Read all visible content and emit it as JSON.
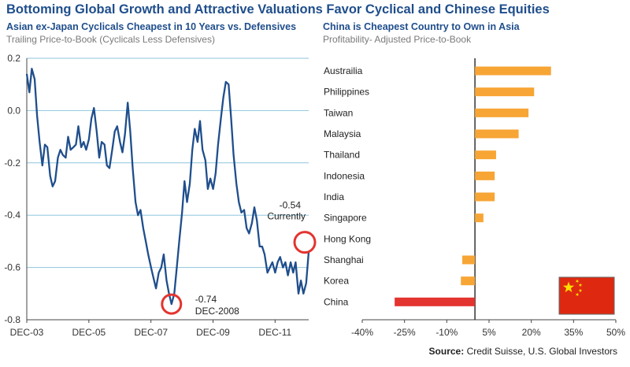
{
  "title": "Bottoming Global Growth and Attractive Valuations Favor Cyclical and Chinese Equities",
  "source_label": "Source:",
  "source_text": "Credit Suisse, U.S. Global Investors",
  "colors": {
    "title": "#1f4e8c",
    "line": "#1f4e8c",
    "grid": "#8ec5de",
    "bar": "#f7a535",
    "china_bar": "#e3342f",
    "marker": "#e3342f",
    "flag_red": "#de2910",
    "flag_star": "#ffde00"
  },
  "chart_data": [
    {
      "type": "line",
      "title": "Asian ex-Japan Cyclicals Cheapest in 10 Years vs. Defensives",
      "subtitle": "Trailing Price-to-Book (Cyclicals Less Defensives)",
      "xlabel": "",
      "ylabel": "",
      "ylim": [
        -0.8,
        0.2
      ],
      "xlim": [
        2003.917,
        2013.0
      ],
      "y_ticks": [
        0.2,
        0.0,
        -0.2,
        -0.4,
        -0.6,
        -0.8
      ],
      "y_tick_labels": [
        "0.2",
        "0.0",
        "-0.2",
        "-0.4",
        "-0.6",
        "-0.8"
      ],
      "x_ticks": [
        2003.917,
        2005.917,
        2007.917,
        2009.917,
        2011.917
      ],
      "x_tick_labels": [
        "DEC-03",
        "DEC-05",
        "DEC-07",
        "DEC-09",
        "DEC-11"
      ],
      "series": [
        {
          "name": "Cyclicals less Defensives",
          "x": [
            2003.917,
            2004.0,
            2004.08,
            2004.17,
            2004.25,
            2004.33,
            2004.42,
            2004.5,
            2004.58,
            2004.67,
            2004.75,
            2004.83,
            2004.92,
            2005.0,
            2005.08,
            2005.17,
            2005.25,
            2005.33,
            2005.42,
            2005.5,
            2005.58,
            2005.67,
            2005.75,
            2005.83,
            2005.92,
            2006.0,
            2006.08,
            2006.17,
            2006.25,
            2006.33,
            2006.42,
            2006.5,
            2006.58,
            2006.67,
            2006.75,
            2006.83,
            2006.92,
            2007.0,
            2007.08,
            2007.17,
            2007.25,
            2007.33,
            2007.42,
            2007.5,
            2007.58,
            2007.67,
            2007.75,
            2007.83,
            2007.92,
            2008.0,
            2008.08,
            2008.17,
            2008.25,
            2008.33,
            2008.42,
            2008.5,
            2008.58,
            2008.67,
            2008.75,
            2008.83,
            2008.92,
            2009.0,
            2009.08,
            2009.17,
            2009.25,
            2009.33,
            2009.42,
            2009.5,
            2009.58,
            2009.67,
            2009.75,
            2009.83,
            2009.92,
            2010.0,
            2010.08,
            2010.17,
            2010.25,
            2010.33,
            2010.42,
            2010.5,
            2010.58,
            2010.67,
            2010.75,
            2010.83,
            2010.92,
            2011.0,
            2011.08,
            2011.17,
            2011.25,
            2011.33,
            2011.42,
            2011.5,
            2011.58,
            2011.67,
            2011.75,
            2011.83,
            2011.92,
            2012.0,
            2012.08,
            2012.17,
            2012.25,
            2012.33,
            2012.42,
            2012.5,
            2012.58,
            2012.67,
            2012.75,
            2012.83,
            2012.92,
            2013.0
          ],
          "y": [
            0.14,
            0.07,
            0.16,
            0.12,
            -0.02,
            -0.12,
            -0.21,
            -0.13,
            -0.14,
            -0.25,
            -0.29,
            -0.27,
            -0.18,
            -0.15,
            -0.17,
            -0.18,
            -0.1,
            -0.15,
            -0.14,
            -0.13,
            -0.06,
            -0.14,
            -0.12,
            -0.15,
            -0.11,
            -0.03,
            0.01,
            -0.08,
            -0.18,
            -0.12,
            -0.13,
            -0.21,
            -0.22,
            -0.15,
            -0.08,
            -0.06,
            -0.12,
            -0.16,
            -0.09,
            0.03,
            -0.08,
            -0.22,
            -0.35,
            -0.4,
            -0.38,
            -0.45,
            -0.5,
            -0.55,
            -0.6,
            -0.64,
            -0.68,
            -0.62,
            -0.6,
            -0.55,
            -0.65,
            -0.7,
            -0.74,
            -0.7,
            -0.6,
            -0.5,
            -0.39,
            -0.27,
            -0.35,
            -0.28,
            -0.15,
            -0.07,
            -0.12,
            -0.04,
            -0.15,
            -0.19,
            -0.3,
            -0.26,
            -0.3,
            -0.24,
            -0.13,
            -0.03,
            0.05,
            0.11,
            0.1,
            -0.03,
            -0.17,
            -0.28,
            -0.35,
            -0.39,
            -0.38,
            -0.45,
            -0.47,
            -0.43,
            -0.37,
            -0.42,
            -0.52,
            -0.52,
            -0.55,
            -0.62,
            -0.6,
            -0.58,
            -0.62,
            -0.58,
            -0.56,
            -0.6,
            -0.58,
            -0.63,
            -0.58,
            -0.62,
            -0.58,
            -0.7,
            -0.65,
            -0.7,
            -0.66,
            -0.54
          ]
        }
      ],
      "annotations": [
        {
          "text": "-0.74",
          "x": 2008.58,
          "y": -0.74
        },
        {
          "text": "DEC-2008",
          "x": 2008.58,
          "y": -0.74
        },
        {
          "text": "-0.54",
          "x": 2013.0,
          "y": -0.54
        },
        {
          "text": "Currently",
          "x": 2013.0,
          "y": -0.54
        }
      ]
    },
    {
      "type": "bar",
      "orientation": "horizontal",
      "title": "China is Cheapest Country to Own in Asia",
      "subtitle": "Profitability- Adjusted Price-to-Book",
      "xlabel": "",
      "ylabel": "",
      "xlim": [
        -40,
        50
      ],
      "x_ticks": [
        -40,
        -25,
        -10,
        5,
        20,
        35,
        50
      ],
      "x_tick_labels": [
        "-40%",
        "-25%",
        "-10%",
        "5%",
        "20%",
        "35%",
        "50%"
      ],
      "categories": [
        "Austrailia",
        "Philippines",
        "Taiwan",
        "Malaysia",
        "Thailand",
        "Indonesia",
        "India",
        "Singapore",
        "Hong Kong",
        "Shanghai",
        "Korea",
        "China"
      ],
      "values": [
        27,
        21,
        19,
        15.5,
        7.5,
        7,
        7,
        3,
        0,
        -4.5,
        -5,
        -28.5
      ]
    }
  ]
}
